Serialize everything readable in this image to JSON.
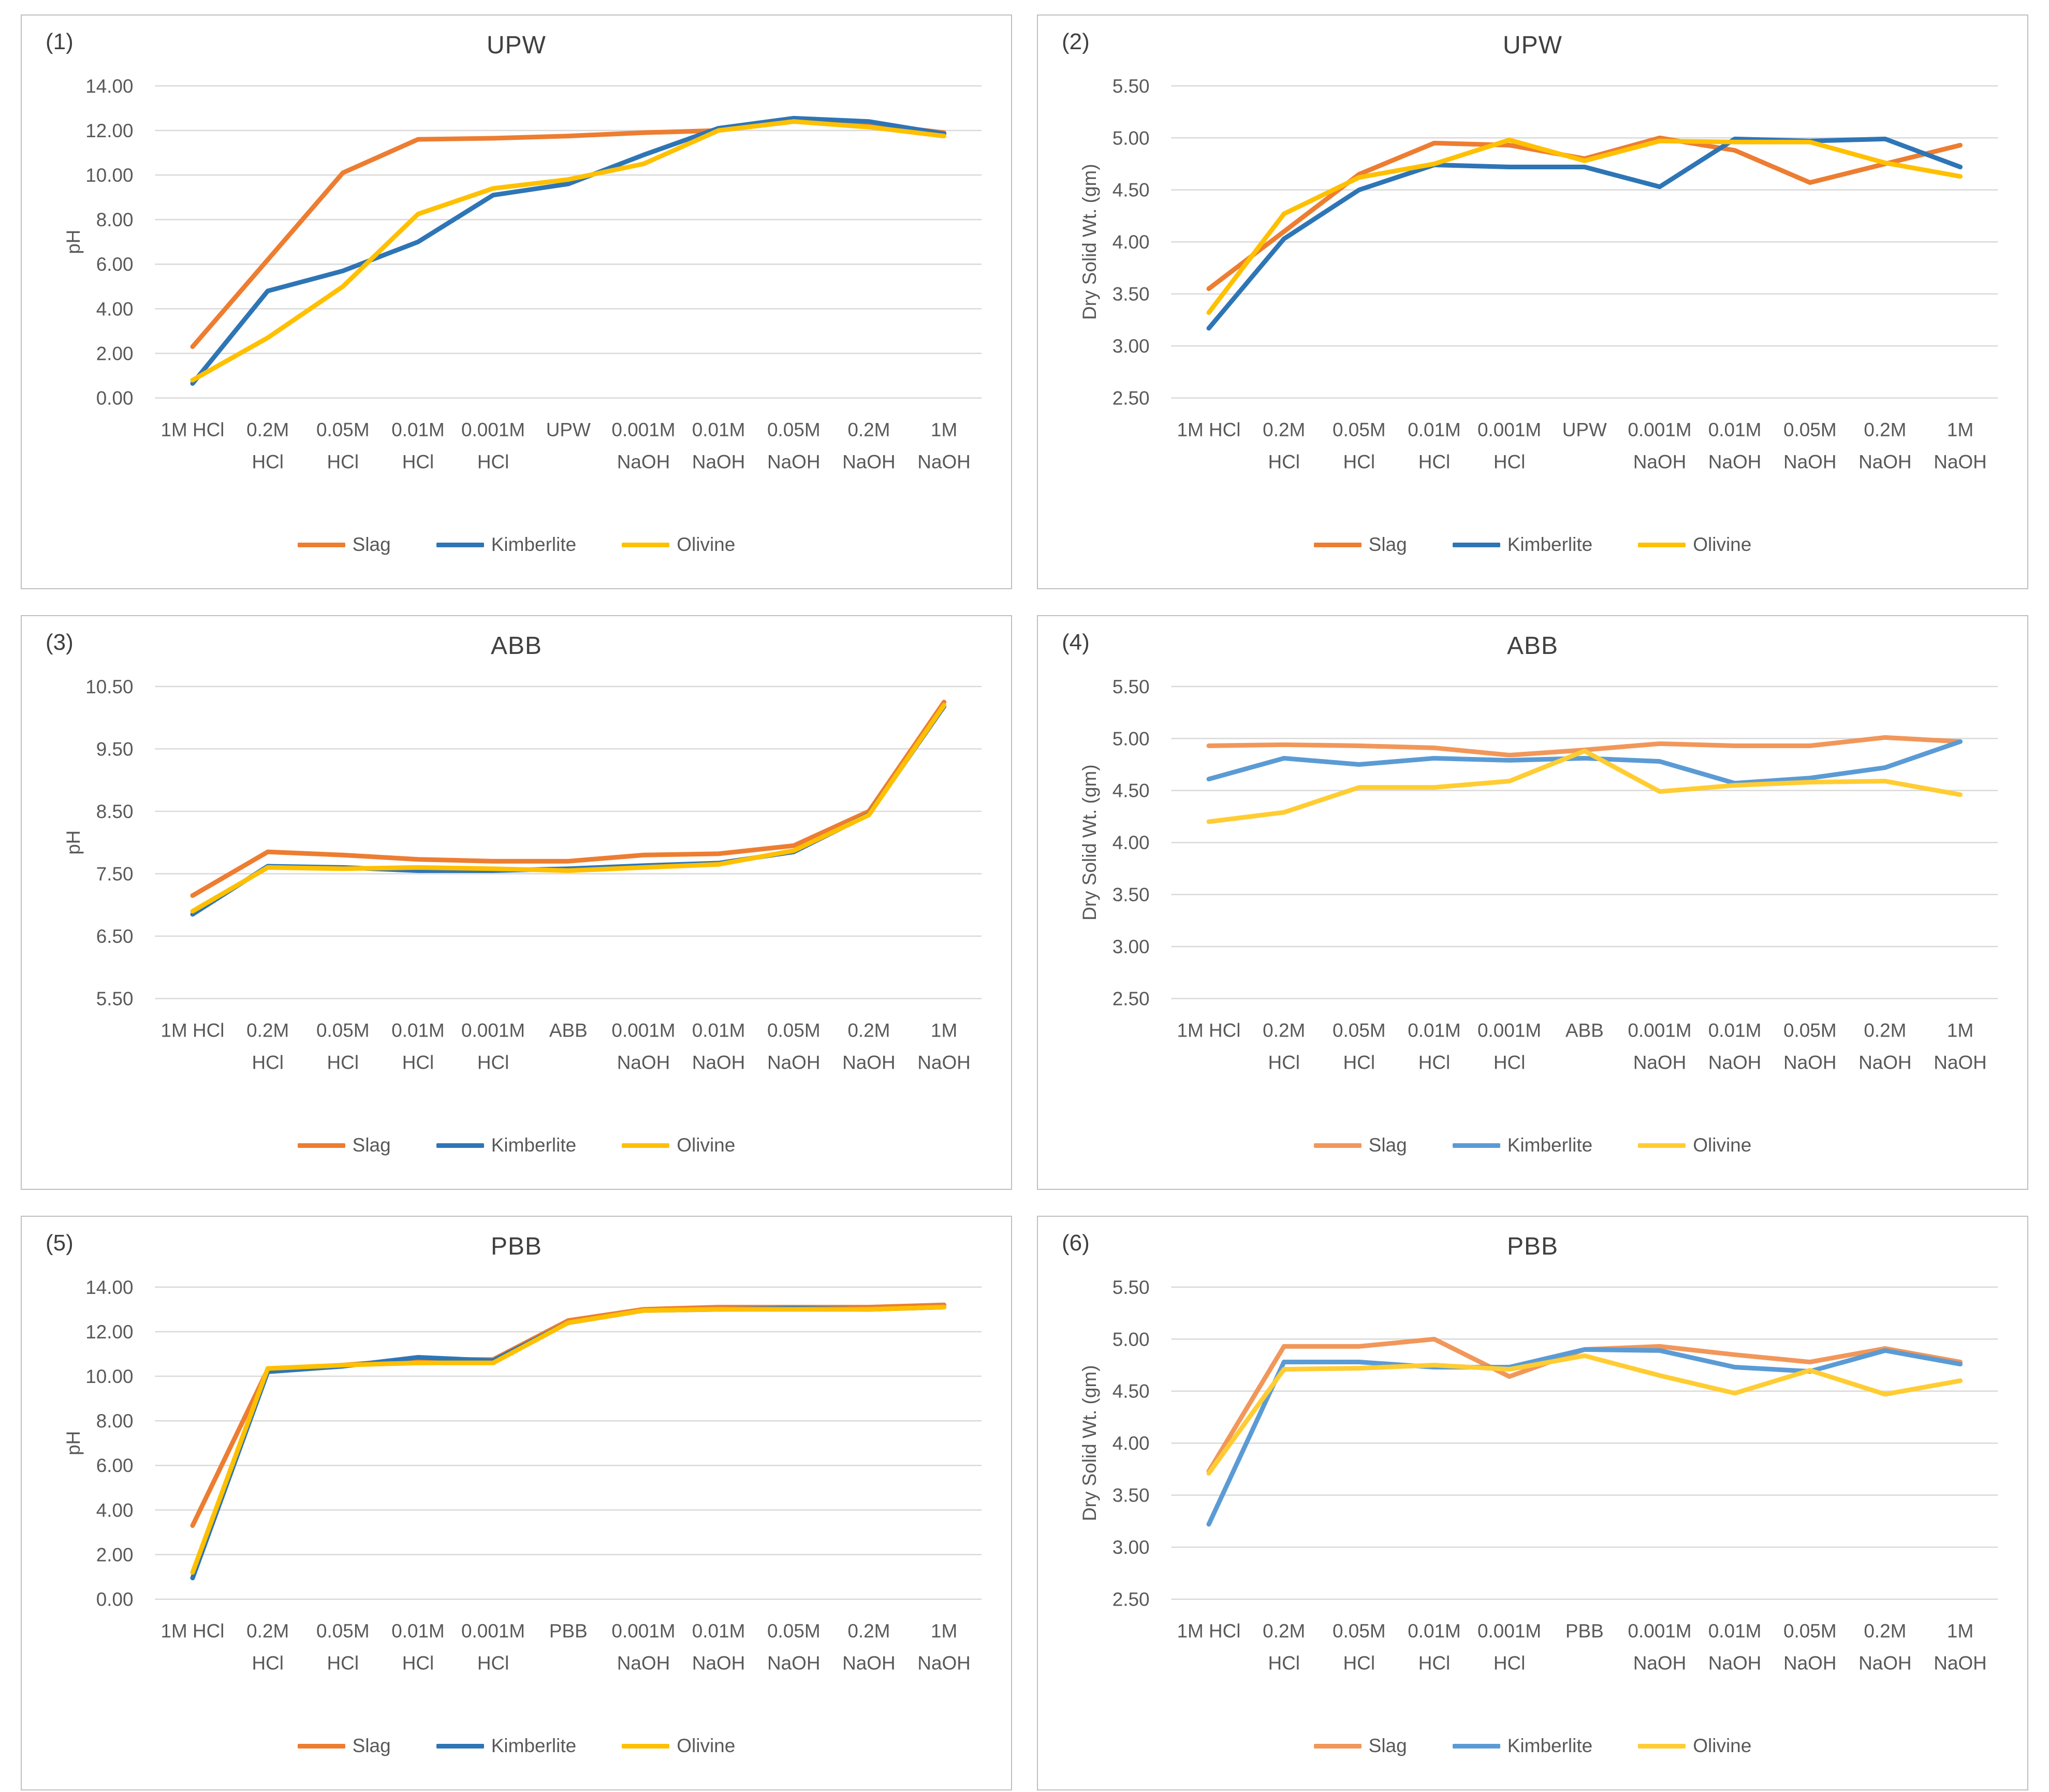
{
  "figure": {
    "background": "#ffffff",
    "panel_border_color": "#bfbfbf",
    "gridline_color": "#d9d9d9",
    "tick_label_color": "#595959",
    "title_color": "#404040"
  },
  "legend_labels": [
    "Slag",
    "Kimberlite",
    "Olivine"
  ],
  "chart_data": [
    {
      "panel_label": "(1)",
      "title": "UPW",
      "type": "line",
      "xlabel": "",
      "ylabel": "pH",
      "ylim": [
        0,
        14
      ],
      "ytick_step": 2,
      "grid": true,
      "legend_position": "bottom",
      "categories": [
        [
          "1M HCl"
        ],
        [
          "0.2M",
          "HCl"
        ],
        [
          "0.05M",
          "HCl"
        ],
        [
          "0.01M",
          "HCl"
        ],
        [
          "0.001M",
          "HCl"
        ],
        [
          "UPW"
        ],
        [
          "0.001M",
          "NaOH"
        ],
        [
          "0.01M",
          "NaOH"
        ],
        [
          "0.05M",
          "NaOH"
        ],
        [
          "0.2M",
          "NaOH"
        ],
        [
          "1M",
          "NaOH"
        ]
      ],
      "series": [
        {
          "name": "Slag",
          "color": "#ED7D31",
          "values": [
            2.3,
            6.2,
            10.1,
            11.6,
            11.65,
            11.75,
            11.9,
            12.0,
            12.4,
            12.3,
            11.9
          ]
        },
        {
          "name": "Kimberlite",
          "color": "#2E75B6",
          "values": [
            0.65,
            4.8,
            5.7,
            7.0,
            9.1,
            9.6,
            10.9,
            12.1,
            12.55,
            12.4,
            11.85
          ]
        },
        {
          "name": "Olivine",
          "color": "#FFC000",
          "values": [
            0.8,
            2.7,
            5.0,
            8.25,
            9.4,
            9.8,
            10.5,
            12.0,
            12.4,
            12.15,
            11.75
          ]
        }
      ]
    },
    {
      "panel_label": "(2)",
      "title": "UPW",
      "type": "line",
      "xlabel": "",
      "ylabel": "Dry Solid Wt. (gm)",
      "ylim": [
        2.5,
        5.5
      ],
      "ytick_step": 0.5,
      "grid": true,
      "legend_position": "bottom",
      "categories": [
        [
          "1M HCl"
        ],
        [
          "0.2M",
          "HCl"
        ],
        [
          "0.05M",
          "HCl"
        ],
        [
          "0.01M",
          "HCl"
        ],
        [
          "0.001M",
          "HCl"
        ],
        [
          "UPW"
        ],
        [
          "0.001M",
          "NaOH"
        ],
        [
          "0.01M",
          "NaOH"
        ],
        [
          "0.05M",
          "NaOH"
        ],
        [
          "0.2M",
          "NaOH"
        ],
        [
          "1M",
          "NaOH"
        ]
      ],
      "series": [
        {
          "name": "Slag",
          "color": "#ED7D31",
          "values": [
            3.55,
            4.1,
            4.65,
            4.95,
            4.93,
            4.8,
            5.0,
            4.88,
            4.57,
            4.75,
            4.93
          ]
        },
        {
          "name": "Kimberlite",
          "color": "#2E75B6",
          "values": [
            3.17,
            4.03,
            4.5,
            4.74,
            4.72,
            4.72,
            4.53,
            4.99,
            4.97,
            4.99,
            4.72
          ]
        },
        {
          "name": "Olivine",
          "color": "#FFC000",
          "values": [
            3.32,
            4.27,
            4.62,
            4.75,
            4.98,
            4.78,
            4.97,
            4.96,
            4.96,
            4.76,
            4.63
          ]
        }
      ]
    },
    {
      "panel_label": "(3)",
      "title": "ABB",
      "type": "line",
      "xlabel": "",
      "ylabel": "pH",
      "ylim": [
        5.5,
        10.5
      ],
      "ytick_step": 1,
      "grid": true,
      "legend_position": "bottom",
      "categories": [
        [
          "1M HCl"
        ],
        [
          "0.2M",
          "HCl"
        ],
        [
          "0.05M",
          "HCl"
        ],
        [
          "0.01M",
          "HCl"
        ],
        [
          "0.001M",
          "HCl"
        ],
        [
          "ABB"
        ],
        [
          "0.001M",
          "NaOH"
        ],
        [
          "0.01M",
          "NaOH"
        ],
        [
          "0.05M",
          "NaOH"
        ],
        [
          "0.2M",
          "NaOH"
        ],
        [
          "1M",
          "NaOH"
        ]
      ],
      "series": [
        {
          "name": "Slag",
          "color": "#ED7D31",
          "values": [
            7.15,
            7.85,
            7.8,
            7.73,
            7.7,
            7.7,
            7.8,
            7.82,
            7.95,
            8.5,
            10.25
          ]
        },
        {
          "name": "Kimberlite",
          "color": "#2E75B6",
          "values": [
            6.85,
            7.62,
            7.6,
            7.55,
            7.55,
            7.58,
            7.63,
            7.67,
            7.85,
            8.45,
            10.18
          ]
        },
        {
          "name": "Olivine",
          "color": "#FFC000",
          "values": [
            6.9,
            7.6,
            7.58,
            7.6,
            7.58,
            7.55,
            7.6,
            7.65,
            7.87,
            8.44,
            10.2
          ]
        }
      ]
    },
    {
      "panel_label": "(4)",
      "title": "ABB",
      "type": "line",
      "xlabel": "",
      "ylabel": "Dry Solid Wt. (gm)",
      "ylim": [
        2.5,
        5.5
      ],
      "ytick_step": 0.5,
      "grid": true,
      "legend_position": "bottom",
      "categories": [
        [
          "1M HCl"
        ],
        [
          "0.2M",
          "HCl"
        ],
        [
          "0.05M",
          "HCl"
        ],
        [
          "0.01M",
          "HCl"
        ],
        [
          "0.001M",
          "HCl"
        ],
        [
          "ABB"
        ],
        [
          "0.001M",
          "NaOH"
        ],
        [
          "0.01M",
          "NaOH"
        ],
        [
          "0.05M",
          "NaOH"
        ],
        [
          "0.2M",
          "NaOH"
        ],
        [
          "1M",
          "NaOH"
        ]
      ],
      "series": [
        {
          "name": "Slag",
          "color": "#F1975A",
          "values": [
            4.93,
            4.94,
            4.93,
            4.91,
            4.84,
            4.89,
            4.95,
            4.93,
            4.93,
            5.01,
            4.97
          ]
        },
        {
          "name": "Kimberlite",
          "color": "#5B9BD5",
          "values": [
            4.61,
            4.81,
            4.75,
            4.81,
            4.79,
            4.81,
            4.78,
            4.57,
            4.62,
            4.72,
            4.97
          ]
        },
        {
          "name": "Olivine",
          "color": "#FFCD33",
          "values": [
            4.2,
            4.29,
            4.53,
            4.53,
            4.59,
            4.88,
            4.49,
            4.55,
            4.58,
            4.59,
            4.46
          ]
        }
      ]
    },
    {
      "panel_label": "(5)",
      "title": "PBB",
      "type": "line",
      "xlabel": "",
      "ylabel": "pH",
      "ylim": [
        0,
        14
      ],
      "ytick_step": 2,
      "grid": true,
      "legend_position": "bottom",
      "categories": [
        [
          "1M HCl"
        ],
        [
          "0.2M",
          "HCl"
        ],
        [
          "0.05M",
          "HCl"
        ],
        [
          "0.01M",
          "HCl"
        ],
        [
          "0.001M",
          "HCl"
        ],
        [
          "PBB"
        ],
        [
          "0.001M",
          "NaOH"
        ],
        [
          "0.01M",
          "NaOH"
        ],
        [
          "0.05M",
          "NaOH"
        ],
        [
          "0.2M",
          "NaOH"
        ],
        [
          "1M",
          "NaOH"
        ]
      ],
      "series": [
        {
          "name": "Slag",
          "color": "#ED7D31",
          "values": [
            3.3,
            10.3,
            10.5,
            10.75,
            10.75,
            12.5,
            13.0,
            13.1,
            13.1,
            13.1,
            13.2
          ]
        },
        {
          "name": "Kimberlite",
          "color": "#2E75B6",
          "values": [
            0.95,
            10.2,
            10.45,
            10.85,
            10.7,
            12.4,
            12.95,
            13.0,
            13.05,
            13.0,
            13.1
          ]
        },
        {
          "name": "Olivine",
          "color": "#FFC000",
          "values": [
            1.2,
            10.35,
            10.5,
            10.6,
            10.6,
            12.4,
            12.95,
            13.0,
            13.0,
            13.0,
            13.1
          ]
        }
      ]
    },
    {
      "panel_label": "(6)",
      "title": "PBB",
      "type": "line",
      "xlabel": "",
      "ylabel": "Dry Solid Wt. (gm)",
      "ylim": [
        2.5,
        5.5
      ],
      "ytick_step": 0.5,
      "grid": true,
      "legend_position": "bottom",
      "categories": [
        [
          "1M HCl"
        ],
        [
          "0.2M",
          "HCl"
        ],
        [
          "0.05M",
          "HCl"
        ],
        [
          "0.01M",
          "HCl"
        ],
        [
          "0.001M",
          "HCl"
        ],
        [
          "PBB"
        ],
        [
          "0.001M",
          "NaOH"
        ],
        [
          "0.01M",
          "NaOH"
        ],
        [
          "0.05M",
          "NaOH"
        ],
        [
          "0.2M",
          "NaOH"
        ],
        [
          "1M",
          "NaOH"
        ]
      ],
      "series": [
        {
          "name": "Slag",
          "color": "#F1975A",
          "values": [
            3.73,
            4.93,
            4.93,
            5.0,
            4.64,
            4.9,
            4.93,
            4.85,
            4.78,
            4.91,
            4.78
          ]
        },
        {
          "name": "Kimberlite",
          "color": "#5B9BD5",
          "values": [
            3.22,
            4.78,
            4.78,
            4.73,
            4.73,
            4.9,
            4.89,
            4.73,
            4.69,
            4.89,
            4.76
          ]
        },
        {
          "name": "Olivine",
          "color": "#FFCD33",
          "values": [
            3.71,
            4.71,
            4.72,
            4.75,
            4.71,
            4.84,
            4.65,
            4.48,
            4.7,
            4.47,
            4.6
          ]
        }
      ]
    }
  ]
}
